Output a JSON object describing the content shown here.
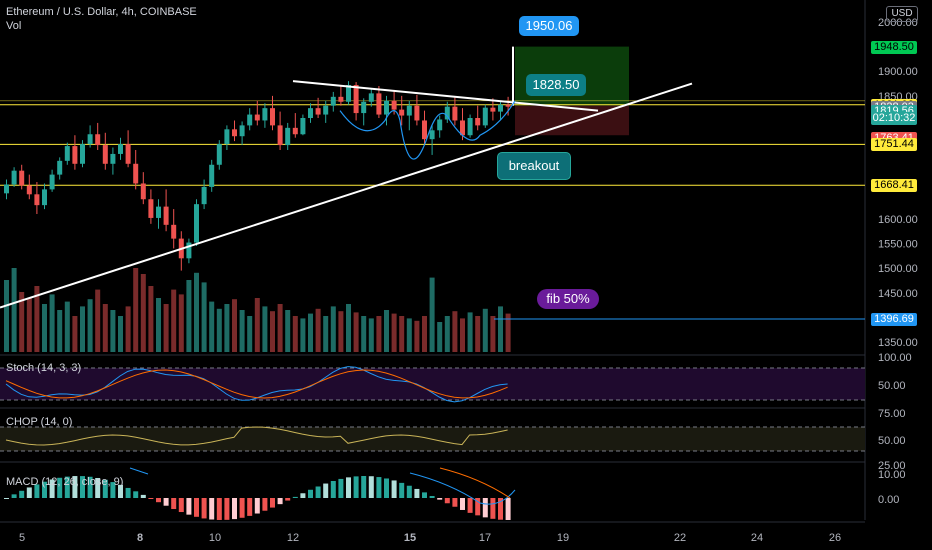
{
  "header": {
    "symbol": "Ethereum / U.S. Dollar, 4h, COINBASE",
    "vol_label": "Vol",
    "currency": "USD"
  },
  "price_axis": {
    "ticks": [
      "2000.00",
      "1900.00",
      "1850.00",
      "1600.00",
      "1550.00",
      "1500.00",
      "1450.00",
      "1350.00"
    ],
    "labels": [
      {
        "value": "1948.50",
        "bg": "#00c853",
        "fg": "#000000"
      },
      {
        "value": "1831.92",
        "bg": "#ffeb3b",
        "fg": "#000000"
      },
      {
        "value": "1828.03",
        "bg": "#787b86",
        "fg": "#ffffff"
      },
      {
        "value": "1819.56",
        "bg": "#26a69a",
        "fg": "#ffffff"
      },
      {
        "value": "02:10:32",
        "bg": "#26a69a",
        "fg": "#ffffff"
      },
      {
        "value": "1763.41",
        "bg": "#ef5350",
        "fg": "#ffffff"
      },
      {
        "value": "1751.44",
        "bg": "#ffeb3b",
        "fg": "#000000"
      },
      {
        "value": "1668.41",
        "bg": "#ffeb3b",
        "fg": "#000000"
      },
      {
        "value": "1396.69",
        "bg": "#2196f3",
        "fg": "#ffffff"
      }
    ]
  },
  "x_axis": {
    "ticks": [
      "5",
      "8",
      "10",
      "12",
      "15",
      "17",
      "19",
      "22",
      "24",
      "26"
    ]
  },
  "annotations": {
    "target": "1950.06",
    "entry": "1828.50",
    "breakout": "breakout",
    "fib": "fib 50%"
  },
  "indicators": {
    "stoch": {
      "label": "Stoch (14, 3, 3)",
      "ticks": [
        "100.00",
        "50.00"
      ]
    },
    "chop": {
      "label": "CHOP (14, 0)",
      "ticks": [
        "75.00",
        "50.00",
        "25.00"
      ]
    },
    "macd": {
      "label": "MACD (12, 26, close, 9)",
      "ticks": [
        "10.00",
        "0.00"
      ]
    }
  },
  "colors": {
    "up": "#26a69a",
    "down": "#ef5350",
    "level": "#ffeb3b",
    "trend": "#ffffff",
    "blue": "#2196f3"
  },
  "chart_data": {
    "type": "candlestick",
    "title": "Ethereum / U.S. Dollar, 4h, COINBASE",
    "levels": [
      1831.92,
      1751.44,
      1668.41
    ],
    "target": 1950.06,
    "entry": 1828.5,
    "fib_50": 1396.69,
    "last_price": 1828.03,
    "candles": [
      [
        1652,
        1680,
        1640,
        1670
      ],
      [
        1670,
        1705,
        1665,
        1698
      ],
      [
        1698,
        1710,
        1660,
        1668
      ],
      [
        1668,
        1690,
        1640,
        1650
      ],
      [
        1650,
        1675,
        1610,
        1628
      ],
      [
        1628,
        1672,
        1620,
        1660
      ],
      [
        1660,
        1700,
        1655,
        1690
      ],
      [
        1690,
        1725,
        1680,
        1718
      ],
      [
        1718,
        1755,
        1710,
        1748
      ],
      [
        1748,
        1770,
        1700,
        1712
      ],
      [
        1712,
        1760,
        1705,
        1752
      ],
      [
        1752,
        1790,
        1745,
        1772
      ],
      [
        1772,
        1795,
        1740,
        1750
      ],
      [
        1750,
        1775,
        1700,
        1712
      ],
      [
        1712,
        1745,
        1690,
        1732
      ],
      [
        1732,
        1765,
        1720,
        1752
      ],
      [
        1752,
        1780,
        1705,
        1712
      ],
      [
        1712,
        1740,
        1660,
        1672
      ],
      [
        1672,
        1695,
        1630,
        1640
      ],
      [
        1640,
        1660,
        1590,
        1602
      ],
      [
        1602,
        1640,
        1580,
        1625
      ],
      [
        1625,
        1660,
        1575,
        1588
      ],
      [
        1588,
        1620,
        1540,
        1560
      ],
      [
        1560,
        1575,
        1495,
        1520
      ],
      [
        1520,
        1560,
        1510,
        1552
      ],
      [
        1552,
        1640,
        1545,
        1630
      ],
      [
        1630,
        1680,
        1620,
        1665
      ],
      [
        1665,
        1720,
        1655,
        1710
      ],
      [
        1710,
        1760,
        1700,
        1752
      ],
      [
        1752,
        1790,
        1740,
        1782
      ],
      [
        1782,
        1800,
        1758,
        1768
      ],
      [
        1768,
        1798,
        1750,
        1790
      ],
      [
        1790,
        1825,
        1780,
        1812
      ],
      [
        1812,
        1840,
        1790,
        1800
      ],
      [
        1800,
        1835,
        1785,
        1825
      ],
      [
        1825,
        1850,
        1780,
        1790
      ],
      [
        1790,
        1818,
        1740,
        1750
      ],
      [
        1750,
        1795,
        1740,
        1785
      ],
      [
        1785,
        1815,
        1765,
        1772
      ],
      [
        1772,
        1812,
        1770,
        1805
      ],
      [
        1805,
        1835,
        1795,
        1825
      ],
      [
        1825,
        1846,
        1805,
        1812
      ],
      [
        1812,
        1840,
        1795,
        1830
      ],
      [
        1830,
        1858,
        1818,
        1848
      ],
      [
        1848,
        1870,
        1830,
        1838
      ],
      [
        1838,
        1880,
        1832,
        1872
      ],
      [
        1872,
        1878,
        1800,
        1815
      ],
      [
        1815,
        1845,
        1790,
        1838
      ],
      [
        1838,
        1865,
        1828,
        1855
      ],
      [
        1855,
        1870,
        1805,
        1812
      ],
      [
        1812,
        1850,
        1790,
        1840
      ],
      [
        1840,
        1862,
        1812,
        1822
      ],
      [
        1822,
        1850,
        1790,
        1810
      ],
      [
        1810,
        1840,
        1780,
        1830
      ],
      [
        1830,
        1852,
        1790,
        1800
      ],
      [
        1800,
        1820,
        1750,
        1762
      ],
      [
        1762,
        1790,
        1730,
        1780
      ],
      [
        1780,
        1810,
        1765,
        1802
      ],
      [
        1802,
        1838,
        1795,
        1828
      ],
      [
        1828,
        1848,
        1790,
        1800
      ],
      [
        1800,
        1825,
        1760,
        1770
      ],
      [
        1770,
        1812,
        1765,
        1805
      ],
      [
        1805,
        1830,
        1780,
        1790
      ],
      [
        1790,
        1832,
        1785,
        1826
      ],
      [
        1826,
        1845,
        1800,
        1818
      ],
      [
        1818,
        1840,
        1800,
        1832
      ],
      [
        1832,
        1848,
        1810,
        1828
      ]
    ],
    "volume": [
      60,
      70,
      50,
      45,
      55,
      40,
      48,
      35,
      42,
      30,
      38,
      44,
      52,
      40,
      35,
      30,
      38,
      70,
      65,
      55,
      45,
      40,
      52,
      48,
      60,
      66,
      58,
      42,
      36,
      40,
      44,
      35,
      30,
      45,
      38,
      34,
      40,
      35,
      30,
      28,
      32,
      36,
      30,
      38,
      34,
      40,
      33,
      30,
      28,
      30,
      35,
      32,
      30,
      28,
      26,
      30,
      62,
      25,
      30,
      34,
      28,
      33,
      30,
      36,
      30,
      38,
      32
    ]
  }
}
